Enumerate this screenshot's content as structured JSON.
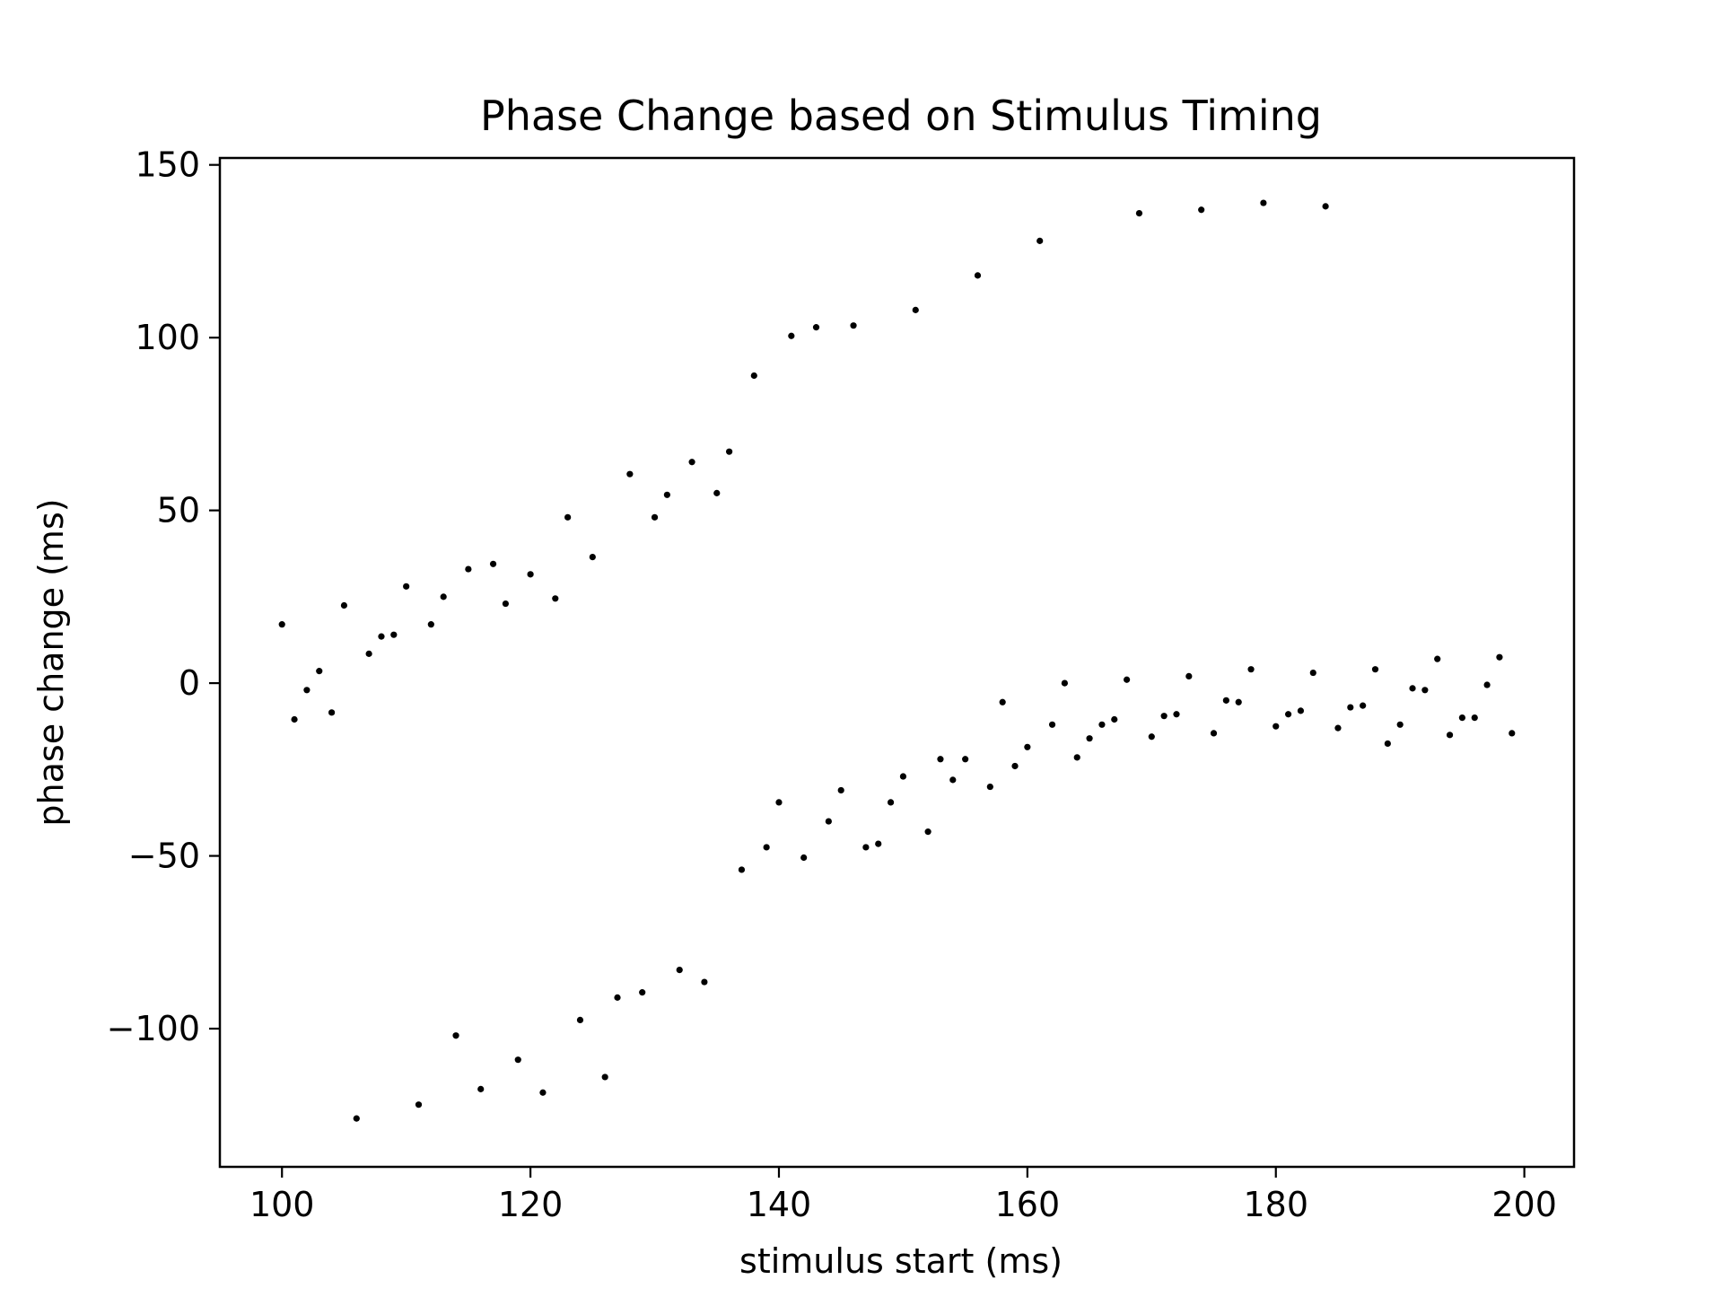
{
  "chart_data": {
    "type": "scatter",
    "title": "Phase Change based on Stimulus Timing",
    "xlabel": "stimulus start (ms)",
    "ylabel": "phase change (ms)",
    "xlim": [
      95,
      204
    ],
    "ylim": [
      -140,
      152
    ],
    "xticks": [
      100,
      120,
      140,
      160,
      180,
      200
    ],
    "xtick_labels": [
      "100",
      "120",
      "140",
      "160",
      "180",
      "200"
    ],
    "yticks": [
      -100,
      -50,
      0,
      50,
      100,
      150
    ],
    "ytick_labels": [
      "−100",
      "−50",
      "0",
      "50",
      "100",
      "150"
    ],
    "grid": false,
    "marker_color": "#000000",
    "series": [
      {
        "x": [
          100,
          101,
          102,
          103,
          104,
          105,
          106,
          107,
          108,
          109,
          110,
          111,
          112,
          113,
          114,
          115,
          116,
          117,
          118,
          119,
          120,
          121,
          122,
          123,
          124,
          125,
          126,
          127,
          128,
          129,
          130,
          131,
          132,
          133,
          134,
          135,
          136,
          137,
          138,
          139,
          140,
          141,
          142,
          143,
          144,
          145,
          146,
          147,
          148,
          149,
          150,
          151,
          152,
          153,
          154,
          155,
          156,
          157,
          158,
          159,
          160,
          161,
          162,
          163,
          164,
          165,
          166,
          167,
          168,
          169,
          170,
          171,
          172,
          173,
          174,
          175,
          176,
          177,
          178,
          179,
          180,
          181,
          182,
          183,
          184,
          185,
          186,
          187,
          188,
          189,
          190,
          191,
          192,
          193,
          194,
          195,
          196,
          197,
          198,
          199
        ],
        "y": [
          17,
          -10.5,
          -2,
          3.5,
          -8.5,
          22.5,
          -126,
          8.5,
          13.5,
          14,
          28,
          -122,
          17,
          25,
          -102,
          33,
          -117.5,
          34.5,
          23,
          -109,
          31.5,
          -118.5,
          24.5,
          48,
          -97.5,
          36.5,
          -114,
          -91,
          60.5,
          -89.5,
          48,
          54.5,
          -83,
          64,
          -86.5,
          55,
          67,
          -54,
          89,
          -47.5,
          -34.5,
          100.5,
          -50.5,
          103,
          -40,
          -31,
          103.5,
          -47.5,
          -46.5,
          -34.5,
          -27,
          108,
          -43,
          -22,
          -28,
          -22,
          118,
          -30,
          -5.5,
          -24,
          -18.5,
          128,
          -12,
          0,
          -21.5,
          -16,
          -12,
          -10.5,
          1,
          136,
          -15.5,
          -9.5,
          -9,
          2,
          137,
          -14.5,
          -5,
          -5.5,
          4,
          139,
          -12.5,
          -9,
          -8,
          3,
          138,
          -13,
          -7,
          -6.5,
          4,
          -17.5,
          -12,
          -1.5,
          -2,
          7,
          -15,
          -10,
          -10,
          -0.5,
          7.5,
          -14.5
        ]
      }
    ]
  }
}
